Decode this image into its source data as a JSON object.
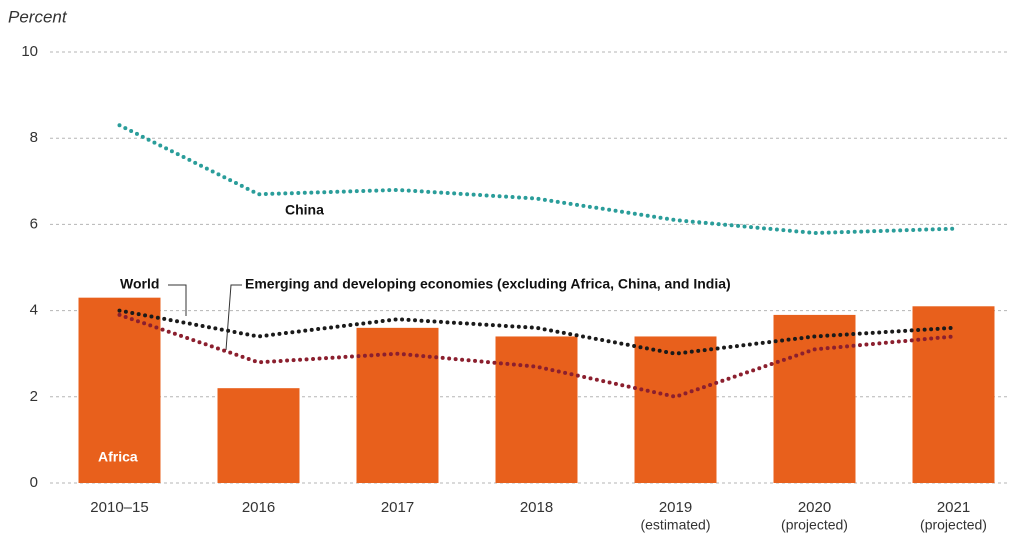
{
  "chart_data": {
    "type": "bar",
    "ylabel": "Percent",
    "categories": [
      "2010–15",
      "2016",
      "2017",
      "2018",
      "2019",
      "2020",
      "2021"
    ],
    "category_notes": [
      null,
      null,
      null,
      null,
      "(estimated)",
      "(projected)",
      "(projected)"
    ],
    "ylim": [
      0,
      10
    ],
    "yticks": [
      0,
      2,
      4,
      6,
      8,
      10
    ],
    "grid": true,
    "series": [
      {
        "name": "Africa",
        "type": "bar",
        "color": "#e8601c",
        "values": [
          4.3,
          2.2,
          3.6,
          3.4,
          3.4,
          3.9,
          4.1
        ]
      },
      {
        "name": "China",
        "type": "line",
        "color": "#2a9d9a",
        "values": [
          8.3,
          6.7,
          6.8,
          6.6,
          6.1,
          5.8,
          5.9
        ]
      },
      {
        "name": "World",
        "type": "line",
        "color": "#1a1a1a",
        "values": [
          4.0,
          3.4,
          3.8,
          3.6,
          3.0,
          3.4,
          3.6
        ]
      },
      {
        "name": "Emerging and developing economies (excluding Africa, China, and India)",
        "type": "line",
        "color": "#8b1f2e",
        "values": [
          3.9,
          2.8,
          3.0,
          2.7,
          2.0,
          3.1,
          3.4
        ]
      }
    ]
  }
}
